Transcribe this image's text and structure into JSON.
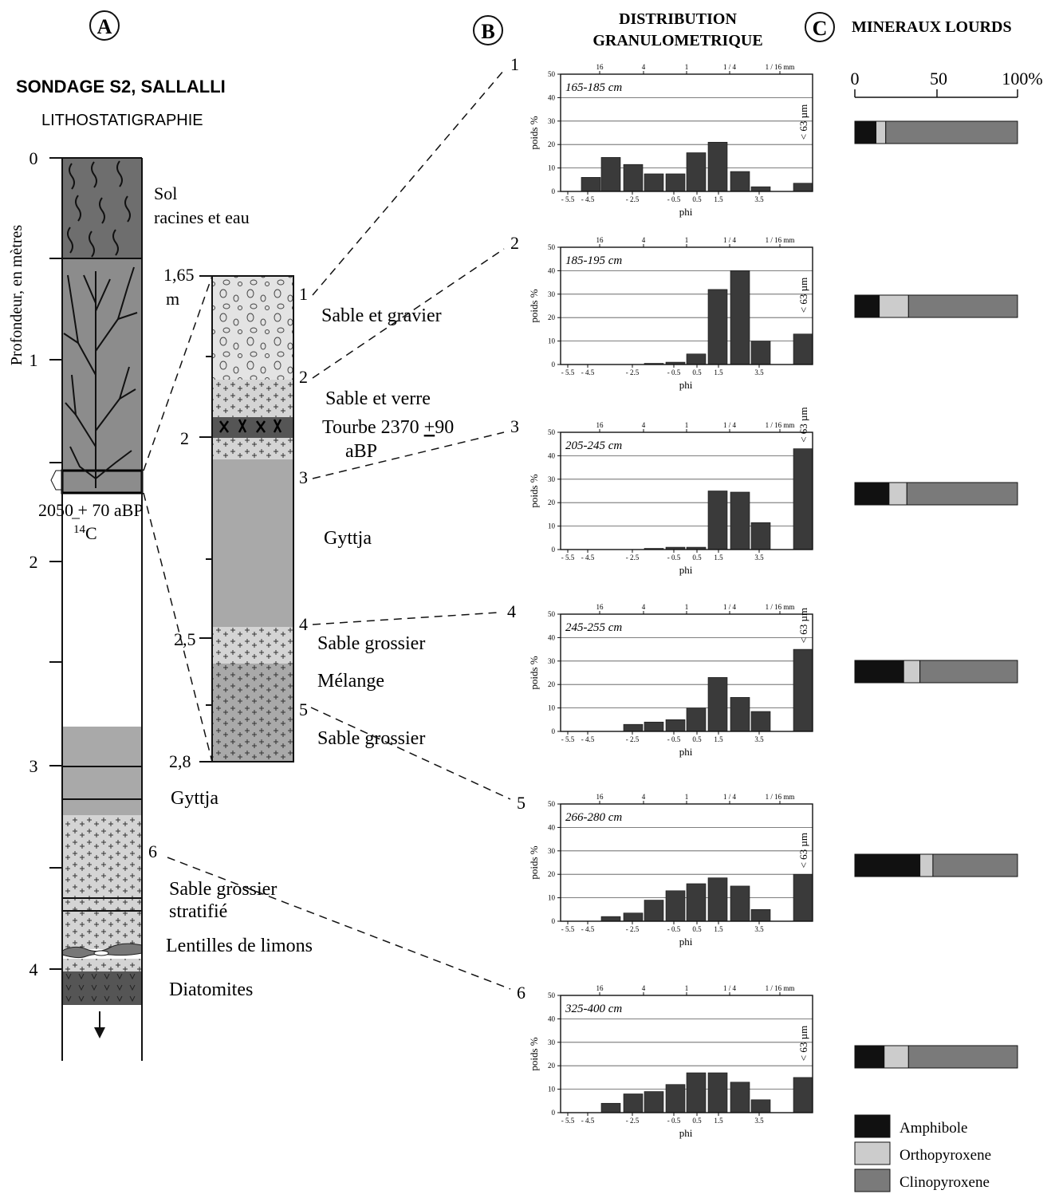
{
  "panels": {
    "a": "A",
    "b": "B",
    "c": "C"
  },
  "section_a": {
    "title": "SONDAGE S2, SALLALLI",
    "subtitle": "LITHOSTATIGRAPHIE",
    "depth_axis_label": "Profondeur, en mètres",
    "depth_ticks": [
      "0",
      "1",
      "2",
      "3",
      "4"
    ],
    "date_label": "2050 + 70 aBP",
    "isotope_label": "14",
    "isotope_unit": "C",
    "units": [
      {
        "label": "Sol"
      },
      {
        "label": "racines et eau"
      },
      {
        "label": "Gyttja"
      },
      {
        "label": "Sable grossier"
      },
      {
        "label": "stratifié"
      },
      {
        "label": "Lentilles de limons"
      },
      {
        "label": "Diatomites"
      }
    ],
    "sample_marker": "6"
  },
  "detail": {
    "top_label": "1,65",
    "top_unit": "m",
    "tick_labels": [
      "2",
      "2,5",
      "2,8"
    ],
    "sample_numbers": [
      "1",
      "2",
      "3",
      "4",
      "5"
    ],
    "units": [
      "Sable et gravier",
      "Sable et verre",
      "Tourbe 2370 ",
      "90",
      "aBP",
      "Gyttja",
      "Sable grossier",
      "Mélange",
      "Sable grossier"
    ]
  },
  "section_b": {
    "title_line1": "DISTRIBUTION",
    "title_line2": "GRANULOMETRIQUE"
  },
  "chart_data": [
    {
      "type": "bar",
      "sample": "1",
      "title": "165-185 cm",
      "x": [
        -5.5,
        -4.5,
        -3.5,
        -2.5,
        -1.5,
        -0.5,
        0.5,
        1.5,
        2.5,
        3.5,
        4.5,
        5.5
      ],
      "values": [
        0,
        6,
        14.5,
        11.5,
        7.5,
        7.5,
        16.5,
        21,
        8.5,
        2,
        0,
        3.5
      ],
      "ylabel": "poids %",
      "xlabel": "phi",
      "ylim": [
        0,
        50
      ],
      "x_ticks": [
        "- 5.5",
        "- 4.5",
        "- 2.5",
        "- 0.5",
        "0.5",
        "1.5",
        "3.5"
      ],
      "top_ticks": [
        "16",
        "4",
        "1",
        "1 / 4",
        "1 / 16 mm"
      ],
      "fines_label": "< 63 µm",
      "grid": true
    },
    {
      "type": "bar",
      "sample": "2",
      "title": "185-195 cm",
      "x": [
        -5.5,
        -4.5,
        -3.5,
        -2.5,
        -1.5,
        -0.5,
        0.5,
        1.5,
        2.5,
        3.5,
        4.5,
        5.5
      ],
      "values": [
        0,
        0,
        0,
        0,
        0.5,
        1,
        4.5,
        32,
        40,
        10,
        0,
        13
      ],
      "ylabel": "poids %",
      "xlabel": "phi",
      "ylim": [
        0,
        50
      ],
      "x_ticks": [
        "- 5.5",
        "- 4.5",
        "- 2.5",
        "- 0.5",
        "0.5",
        "1.5",
        "3.5"
      ],
      "top_ticks": [
        "16",
        "4",
        "1",
        "1 / 4",
        "1 / 16 mm"
      ],
      "fines_label": "< 63 µm",
      "grid": true
    },
    {
      "type": "bar",
      "sample": "3",
      "title": "205-245 cm",
      "x": [
        -5.5,
        -4.5,
        -3.5,
        -2.5,
        -1.5,
        -0.5,
        0.5,
        1.5,
        2.5,
        3.5,
        4.5,
        5.5
      ],
      "values": [
        0,
        0,
        0,
        0,
        0.5,
        1,
        1,
        25,
        24.5,
        11.5,
        0,
        43
      ],
      "ylabel": "poids %",
      "xlabel": "phi",
      "ylim": [
        0,
        50
      ],
      "x_ticks": [
        "- 5.5",
        "- 4.5",
        "- 2.5",
        "- 0.5",
        "0.5",
        "1.5",
        "3.5"
      ],
      "top_ticks": [
        "16",
        "4",
        "1",
        "1 / 4",
        "1 / 16 mm"
      ],
      "fines_label": "< 63 µm",
      "grid": true
    },
    {
      "type": "bar",
      "sample": "4",
      "title": "245-255 cm",
      "x": [
        -5.5,
        -4.5,
        -3.5,
        -2.5,
        -1.5,
        -0.5,
        0.5,
        1.5,
        2.5,
        3.5,
        4.5,
        5.5
      ],
      "values": [
        0,
        0,
        0,
        3,
        4,
        5,
        10,
        23,
        14.5,
        8.5,
        0,
        35
      ],
      "ylabel": "poids %",
      "xlabel": "phi",
      "ylim": [
        0,
        50
      ],
      "x_ticks": [
        "- 5.5",
        "- 4.5",
        "- 2.5",
        "- 0.5",
        "0.5",
        "1.5",
        "3.5"
      ],
      "top_ticks": [
        "16",
        "4",
        "1",
        "1 / 4",
        "1 / 16 mm"
      ],
      "fines_label": "< 63 µm",
      "grid": true
    },
    {
      "type": "bar",
      "sample": "5",
      "title": "266-280 cm",
      "x": [
        -5.5,
        -4.5,
        -3.5,
        -2.5,
        -1.5,
        -0.5,
        0.5,
        1.5,
        2.5,
        3.5,
        4.5,
        5.5
      ],
      "values": [
        0,
        0,
        2,
        3.5,
        9,
        13,
        16,
        18.5,
        15,
        5,
        0,
        20
      ],
      "ylabel": "poids %",
      "xlabel": "phi",
      "ylim": [
        0,
        50
      ],
      "x_ticks": [
        "- 5.5",
        "- 4.5",
        "- 2.5",
        "- 0.5",
        "0.5",
        "1.5",
        "3.5"
      ],
      "top_ticks": [
        "16",
        "4",
        "1",
        "1 / 4",
        "1 / 16 mm"
      ],
      "fines_label": "< 63 µm",
      "grid": true
    },
    {
      "type": "bar",
      "sample": "6",
      "title": "325-400 cm",
      "x": [
        -5.5,
        -4.5,
        -3.5,
        -2.5,
        -1.5,
        -0.5,
        0.5,
        1.5,
        2.5,
        3.5,
        4.5,
        5.5
      ],
      "values": [
        0,
        0,
        4,
        8,
        9,
        12,
        17,
        17,
        13,
        5.5,
        0,
        15
      ],
      "ylabel": "poids %",
      "xlabel": "phi",
      "ylim": [
        0,
        50
      ],
      "x_ticks": [
        "- 5.5",
        "- 4.5",
        "- 2.5",
        "- 0.5",
        "0.5",
        "1.5",
        "3.5"
      ],
      "top_ticks": [
        "16",
        "4",
        "1",
        "1 / 4",
        "1 / 16 mm"
      ],
      "fines_label": "< 63 µm",
      "grid": true
    }
  ],
  "y_ticks": [
    "0",
    "10",
    "20",
    "30",
    "40",
    "50"
  ],
  "section_c": {
    "title": "MINERAUX LOURDS",
    "scale": [
      "0",
      "50",
      "100%"
    ],
    "samples": [
      {
        "amphibole": 13,
        "orthopyroxene": 6,
        "clinopyroxene": 81
      },
      {
        "amphibole": 15,
        "orthopyroxene": 18,
        "clinopyroxene": 67
      },
      {
        "amphibole": 21,
        "orthopyroxene": 11,
        "clinopyroxene": 68
      },
      {
        "amphibole": 30,
        "orthopyroxene": 10,
        "clinopyroxene": 60
      },
      {
        "amphibole": 40,
        "orthopyroxene": 8,
        "clinopyroxene": 52
      },
      {
        "amphibole": 18,
        "orthopyroxene": 15,
        "clinopyroxene": 67
      }
    ],
    "legend": [
      "Amphibole",
      "Orthopyroxene",
      "Clinopyroxene"
    ],
    "colors": {
      "amphibole": "#111111",
      "orthopyroxene": "#cccccc",
      "clinopyroxene": "#7a7a7a"
    }
  },
  "colors": {
    "bar": "#3a3a3a",
    "dark": "#6e6e6e",
    "mid": "#a9a9a9",
    "light": "#d4d4d4",
    "diat": "#555555"
  }
}
